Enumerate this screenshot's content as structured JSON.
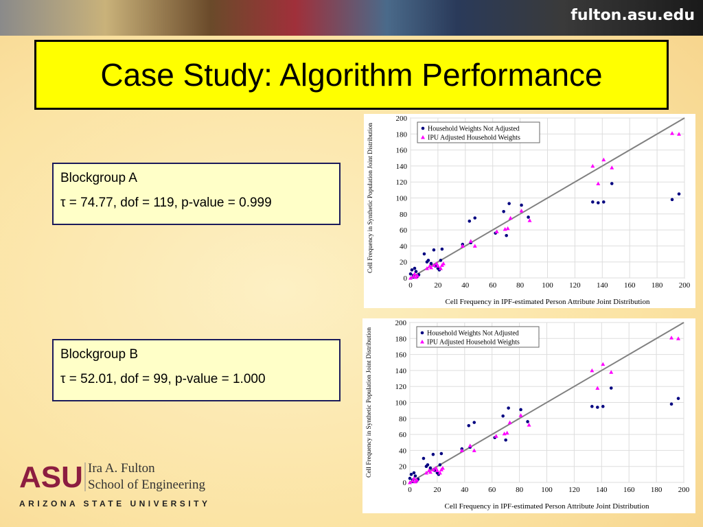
{
  "site": "fulton.asu.edu",
  "title": "Case Study: Algorithm Performance",
  "boxes": [
    {
      "heading": "Blockgroup A",
      "stat": "τ = 74.77, dof = 119, p-value = 0.999"
    },
    {
      "heading": "Blockgroup B",
      "stat": "τ = 52.01, dof = 99, p-value = 1.000"
    }
  ],
  "logo": {
    "mark": "ASU",
    "line1": "Ira A. Fulton",
    "line2": "School of Engineering",
    "university": "ARIZONA STATE UNIVERSITY"
  },
  "chart_data": [
    {
      "type": "scatter",
      "xlabel": "Cell Frequency in IPF-estimated Person Attribute Joint Distribution",
      "ylabel": "Cell Frequency in Synthetic Population Joint Distribution",
      "xlim": [
        0,
        200
      ],
      "ylim": [
        0,
        200
      ],
      "xticks": [
        0,
        20,
        40,
        60,
        80,
        100,
        120,
        140,
        160,
        180,
        200
      ],
      "yticks": [
        0,
        20,
        40,
        60,
        80,
        100,
        120,
        140,
        160,
        180,
        200
      ],
      "grid": true,
      "legend": "upper left",
      "series": [
        {
          "name": "Household Weights Not Adjusted",
          "color": "#000080",
          "marker": "circle",
          "x": [
            0,
            1,
            2,
            3,
            4,
            5,
            2,
            6,
            10,
            12,
            13,
            15,
            17,
            18,
            20,
            21,
            22,
            23,
            38,
            43,
            44,
            47,
            62,
            68,
            70,
            72,
            81,
            86,
            133,
            137,
            141,
            147,
            191,
            196
          ],
          "values": [
            5,
            10,
            3,
            12,
            8,
            2,
            1,
            4,
            30,
            20,
            22,
            18,
            35,
            15,
            12,
            10,
            22,
            36,
            42,
            71,
            44,
            75,
            56,
            83,
            53,
            93,
            91,
            76,
            95,
            94,
            95,
            118,
            98,
            105
          ]
        },
        {
          "name": "IPU Adjusted Household Weights",
          "color": "#ff00ff",
          "marker": "triangle",
          "x": [
            0,
            2,
            3,
            5,
            4,
            12,
            14,
            15,
            17,
            19,
            20,
            22,
            23,
            24,
            38,
            44,
            47,
            63,
            69,
            71,
            73,
            81,
            87,
            133,
            137,
            141,
            147,
            191,
            196
          ],
          "values": [
            0,
            2,
            5,
            3,
            1,
            12,
            15,
            13,
            16,
            18,
            15,
            12,
            16,
            18,
            40,
            46,
            40,
            58,
            61,
            62,
            75,
            84,
            72,
            140,
            118,
            148,
            138,
            181,
            180
          ]
        }
      ]
    },
    {
      "type": "scatter",
      "xlabel": "Cell Frequency in IPF-estimated Person Attribute Joint Distribution",
      "ylabel": "Cell Frequency in Synthetic Population Joint Distribution",
      "xlim": [
        0,
        200
      ],
      "ylim": [
        0,
        200
      ],
      "xticks": [
        0,
        20,
        40,
        60,
        80,
        100,
        120,
        140,
        160,
        180,
        200
      ],
      "yticks": [
        0,
        20,
        40,
        60,
        80,
        100,
        120,
        140,
        160,
        180,
        200
      ],
      "grid": true,
      "legend": "upper left",
      "series": [
        {
          "name": "Household Weights Not Adjusted",
          "color": "#000080",
          "marker": "circle",
          "x": [
            0,
            1,
            2,
            3,
            4,
            5,
            2,
            6,
            10,
            12,
            13,
            15,
            17,
            18,
            20,
            21,
            22,
            23,
            38,
            43,
            44,
            47,
            62,
            68,
            70,
            72,
            81,
            86,
            133,
            137,
            141,
            147,
            191,
            196
          ],
          "values": [
            5,
            10,
            3,
            12,
            8,
            2,
            1,
            4,
            30,
            20,
            22,
            18,
            35,
            15,
            12,
            10,
            22,
            36,
            42,
            71,
            44,
            75,
            56,
            83,
            53,
            93,
            91,
            76,
            95,
            94,
            95,
            118,
            98,
            105
          ]
        },
        {
          "name": "IPU Adjusted Household Weights",
          "color": "#ff00ff",
          "marker": "triangle",
          "x": [
            0,
            2,
            3,
            5,
            4,
            12,
            14,
            15,
            17,
            19,
            20,
            22,
            23,
            24,
            38,
            44,
            47,
            63,
            69,
            71,
            73,
            81,
            87,
            133,
            137,
            141,
            147,
            191,
            196
          ],
          "values": [
            0,
            2,
            5,
            3,
            1,
            12,
            15,
            13,
            16,
            18,
            15,
            12,
            16,
            18,
            40,
            46,
            40,
            58,
            61,
            62,
            75,
            84,
            72,
            140,
            118,
            148,
            138,
            181,
            180
          ]
        }
      ]
    }
  ]
}
